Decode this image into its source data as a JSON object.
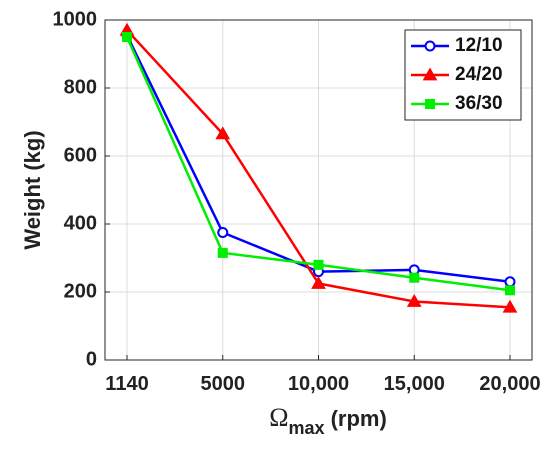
{
  "chart_data": {
    "type": "line",
    "title": "",
    "xlabel": {
      "main": "Ω",
      "sub": "max",
      "unit": "(rpm)"
    },
    "ylabel": "Weight (kg)",
    "categories": [
      "1140",
      "5000",
      "10,000",
      "15,000",
      "20,000"
    ],
    "ylim": [
      0,
      1000
    ],
    "yticks": [
      "0",
      "200",
      "400",
      "600",
      "800",
      "1000"
    ],
    "grid": true,
    "legend_position": "top-right",
    "series": [
      {
        "name": "12/10",
        "color": "#0000ff",
        "marker": "circle",
        "values": [
          955,
          375,
          260,
          265,
          230
        ]
      },
      {
        "name": "24/20",
        "color": "#ff0000",
        "marker": "triangle",
        "values": [
          970,
          665,
          225,
          172,
          155
        ]
      },
      {
        "name": "36/30",
        "color": "#00ee00",
        "marker": "square",
        "values": [
          950,
          315,
          280,
          242,
          205
        ]
      }
    ]
  }
}
